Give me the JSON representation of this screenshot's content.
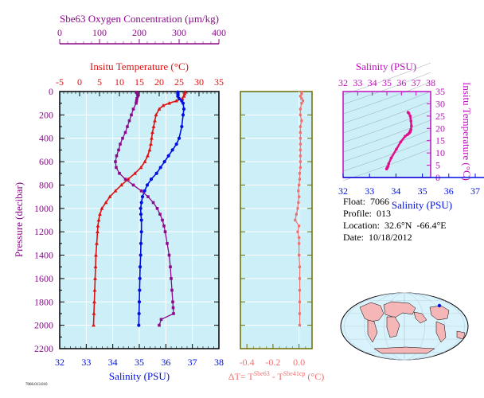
{
  "colors": {
    "oxygen": "#8b0a8b",
    "temperature": "#e01010",
    "salinity": "#0010e0",
    "delta": "#f07070",
    "ts_curve": "#e0108a",
    "panel_bg": "#cdeff8",
    "axis": "#000000",
    "olive": "#6b6b00",
    "land": "#f4b6b6"
  },
  "labels": {
    "oxygen_title": "Sbe63 Oxygen Concentration (µm/kg)",
    "temp_title": "Insitu Temperature (°C)",
    "pressure_label": "Pressure (decibar)",
    "salinity_bottom": "Salinity (PSU)",
    "delta_label": "ΔT= T",
    "delta_sup1": "Sbe63",
    "delta_mid": " - T",
    "delta_sup2": "Sbe41cp",
    "delta_unit": " (°C)",
    "ts_top_title": "Salinity (PSU)",
    "ts_right_title": "Insitu Temperature (°C)",
    "ts_bottom_overlap": "Salinity (PSU)",
    "small_caption": "7066.013.010"
  },
  "info": {
    "float": "Float:  7066",
    "profile": "Profile:  013",
    "location": "Location:  32.6°N  -66.4°E",
    "date": "Date:  10/18/2012"
  },
  "chart_data": [
    {
      "type": "line",
      "title": "",
      "ylabel": "Pressure (decibar)",
      "ylim": [
        2200,
        0
      ],
      "yticks": [
        0,
        200,
        400,
        600,
        800,
        1000,
        1200,
        1400,
        1600,
        1800,
        2000,
        2200
      ],
      "axes": {
        "oxygen": {
          "label": "Sbe63 Oxygen Concentration (µm/kg)",
          "lim": [
            0,
            400
          ],
          "ticks": [
            0,
            100,
            200,
            300,
            400
          ]
        },
        "temperature": {
          "label": "Insitu Temperature (°C)",
          "lim": [
            -5,
            35
          ],
          "ticks": [
            -5,
            0,
            5,
            10,
            15,
            20,
            25,
            30,
            35
          ]
        },
        "salinity": {
          "label": "Salinity (PSU)",
          "lim": [
            32,
            38
          ],
          "ticks": [
            32,
            33,
            34,
            35,
            36,
            37,
            38
          ]
        }
      },
      "series": [
        {
          "key": "temperature",
          "axis": "temperature",
          "pressure": [
            5,
            20,
            40,
            60,
            80,
            100,
            120,
            150,
            200,
            250,
            300,
            350,
            400,
            450,
            500,
            550,
            600,
            650,
            700,
            750,
            800,
            850,
            900,
            950,
            1000,
            1050,
            1100,
            1150,
            1200,
            1300,
            1400,
            1500,
            1600,
            1700,
            1800,
            1900,
            2000
          ],
          "values": [
            26.5,
            26.4,
            26.2,
            25.8,
            24.3,
            22.5,
            21,
            20,
            19.2,
            18.9,
            18.6,
            18.3,
            18.1,
            17.9,
            17.6,
            17.1,
            16.4,
            15.4,
            13.9,
            12.2,
            10.5,
            9.0,
            7.6,
            6.6,
            5.6,
            5.1,
            4.8,
            4.6,
            4.5,
            4.3,
            4.1,
            4.0,
            3.9,
            3.8,
            3.7,
            3.6,
            3.5
          ]
        },
        {
          "key": "salinity",
          "axis": "salinity",
          "pressure": [
            5,
            20,
            40,
            60,
            80,
            100,
            150,
            200,
            300,
            400,
            450,
            500,
            550,
            600,
            650,
            700,
            750,
            800,
            850,
            900,
            950,
            1000,
            1050,
            1100,
            1200,
            1300,
            1400,
            1500,
            1600,
            1700,
            1800,
            1900,
            2000
          ],
          "values": [
            36.45,
            36.45,
            36.45,
            36.5,
            36.6,
            36.65,
            36.68,
            36.65,
            36.6,
            36.5,
            36.4,
            36.25,
            36.1,
            35.95,
            35.8,
            35.65,
            35.45,
            35.3,
            35.2,
            35.12,
            35.08,
            35.05,
            35.06,
            35.08,
            35.08,
            35.06,
            35.05,
            35.03,
            35.02,
            35.01,
            35.0,
            34.99,
            34.98
          ]
        },
        {
          "key": "oxygen",
          "axis": "oxygen",
          "pressure": [
            5,
            20,
            40,
            60,
            80,
            100,
            150,
            200,
            250,
            300,
            350,
            400,
            450,
            500,
            550,
            600,
            650,
            700,
            750,
            800,
            850,
            900,
            950,
            1000,
            1050,
            1100,
            1150,
            1200,
            1300,
            1400,
            1500,
            1600,
            1700,
            1800,
            1850,
            1900,
            1950,
            2000
          ],
          "values": [
            192,
            195,
            196,
            194,
            193,
            192,
            185,
            180,
            175,
            170,
            165,
            158,
            152,
            148,
            143,
            140,
            142,
            150,
            165,
            185,
            205,
            222,
            235,
            245,
            252,
            258,
            262,
            265,
            270,
            275,
            278,
            280,
            282,
            284,
            285,
            286,
            255,
            250
          ]
        }
      ]
    },
    {
      "type": "line",
      "title": "",
      "xlabel": "ΔT= TSbe63 - TSbe41cp (°C)",
      "xlim": [
        -0.45,
        0.1
      ],
      "xticks": [
        -0.4,
        -0.2,
        0.0
      ],
      "ylim": [
        2200,
        0
      ],
      "series": [
        {
          "key": "delta",
          "pressure": [
            5,
            20,
            40,
            60,
            80,
            100,
            150,
            200,
            250,
            300,
            350,
            400,
            450,
            500,
            550,
            600,
            650,
            700,
            750,
            800,
            850,
            900,
            950,
            1000,
            1050,
            1100,
            1150,
            1200,
            1250,
            1300,
            1400,
            1500,
            1600,
            1700,
            1800,
            1900,
            2000
          ],
          "values": [
            0.02,
            0.02,
            0.01,
            0.02,
            0.03,
            0.02,
            0.01,
            0.01,
            0.02,
            0.01,
            0.01,
            0.01,
            0.01,
            0.01,
            0.01,
            0.01,
            0.01,
            0.005,
            0.005,
            0.0,
            -0.005,
            0.0,
            -0.005,
            -0.01,
            -0.02,
            -0.03,
            0.0,
            -0.01,
            0.0,
            0.0,
            0.0,
            0.005,
            0.005,
            0.005,
            0.005,
            0.005,
            0.005
          ]
        }
      ]
    },
    {
      "type": "line",
      "title": "",
      "xlabel": "Salinity (PSU)",
      "ylabel": "Insitu Temperature (°C)",
      "xlim": [
        32,
        38
      ],
      "xticks": [
        32,
        33,
        34,
        35,
        36,
        37,
        38
      ],
      "ylim": [
        0,
        35
      ],
      "yticks": [
        0,
        5,
        10,
        15,
        20,
        25,
        30,
        35
      ],
      "bottom_axis": {
        "lim": [
          32,
          37
        ],
        "ticks": [
          32,
          33,
          34,
          35,
          36,
          37
        ]
      },
      "series": [
        {
          "key": "ts",
          "salinity": [
            34.98,
            35.01,
            35.03,
            35.05,
            35.08,
            35.12,
            35.3,
            35.65,
            35.95,
            36.25,
            36.4,
            36.5,
            36.55,
            36.6,
            36.6,
            36.65,
            36.68,
            36.65,
            36.6,
            36.5,
            36.45
          ],
          "temperature": [
            3.5,
            3.8,
            4.0,
            4.3,
            4.6,
            5.6,
            8.0,
            11.5,
            14.5,
            16.8,
            17.4,
            17.9,
            18.2,
            18.6,
            19.0,
            19.5,
            21.0,
            23.0,
            25.0,
            26.2,
            26.5
          ]
        }
      ]
    }
  ]
}
